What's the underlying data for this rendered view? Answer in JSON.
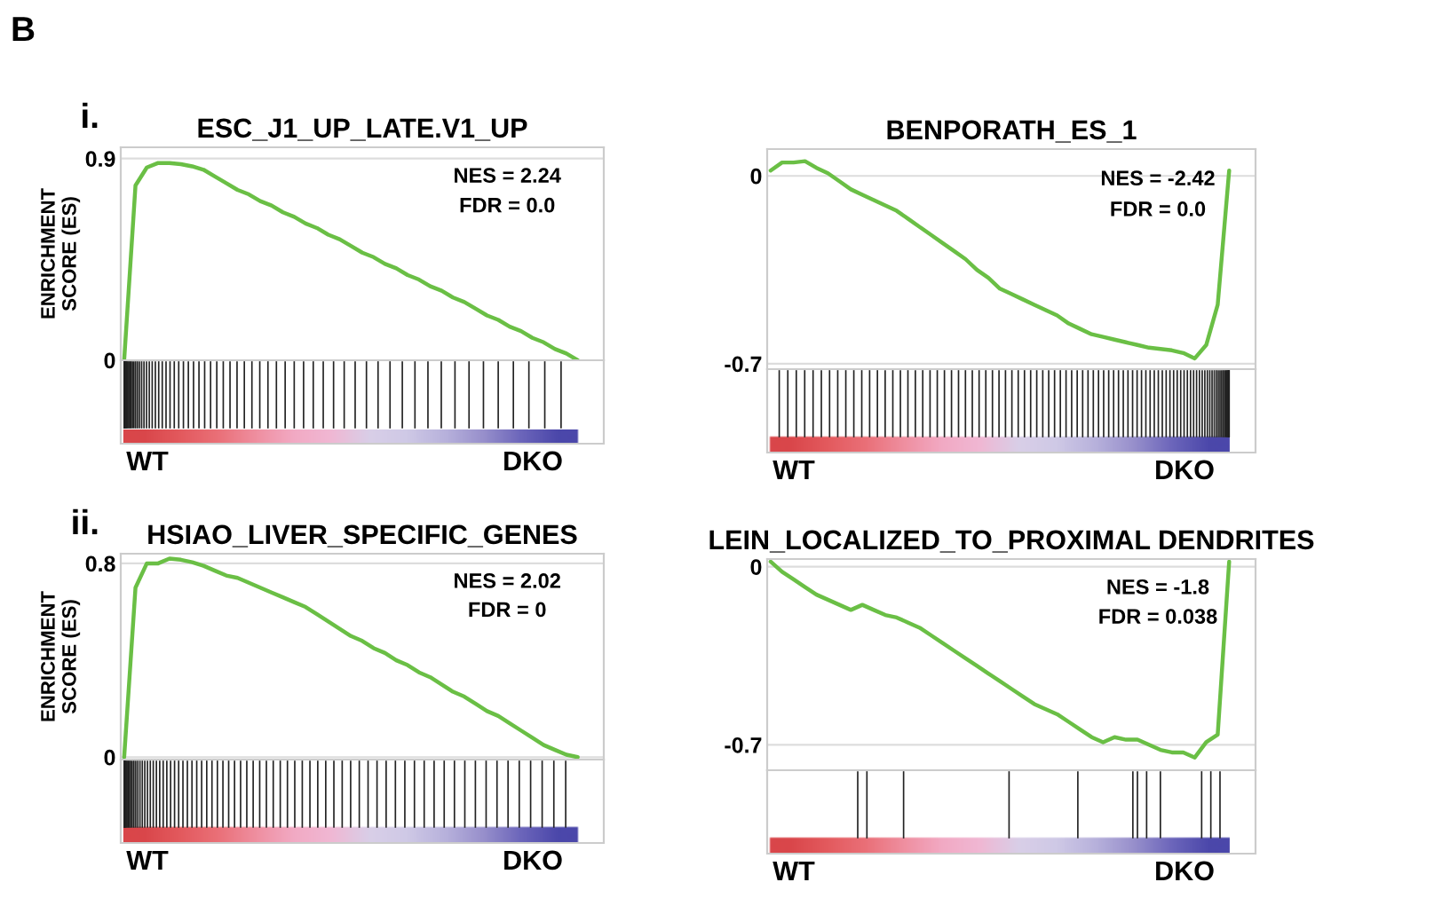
{
  "chart_data": [
    {
      "type": "line",
      "title": "ESC_J1_UP_LATE.V1_UP",
      "ylabel": "ENRICHMENT\nSCORE (ES)",
      "color": "#6abf45",
      "ylim": [
        0,
        0.95
      ],
      "yticks": [
        0,
        0.9
      ],
      "grid": "y",
      "categories": [
        null,
        null,
        null,
        null,
        null,
        null,
        null,
        null,
        null,
        null,
        null,
        null,
        null,
        null,
        null,
        null,
        null,
        null,
        null,
        null,
        null,
        null,
        null,
        null,
        null,
        null,
        null,
        null,
        null,
        null,
        null,
        null,
        null,
        null,
        null,
        null,
        null,
        null,
        null,
        null,
        null,
        null,
        null
      ],
      "values": [
        0,
        0.78,
        0.86,
        0.88,
        0.88,
        0.875,
        0.865,
        0.85,
        0.82,
        0.79,
        0.76,
        0.74,
        0.71,
        0.69,
        0.66,
        0.64,
        0.61,
        0.59,
        0.56,
        0.54,
        0.51,
        0.48,
        0.46,
        0.43,
        0.41,
        0.38,
        0.36,
        0.33,
        0.31,
        0.28,
        0.26,
        0.23,
        0.2,
        0.18,
        0.15,
        0.13,
        0.1,
        0.08,
        0.05,
        0.03,
        0,
        null,
        null
      ],
      "annotations": [
        "NES = 2.24",
        "FDR = 0.0",
        "WT",
        "DKO",
        "i.",
        "B"
      ]
    },
    {
      "type": "line",
      "title": "BENPORATH_ES_1",
      "color": "#6abf45",
      "ylim": [
        -0.72,
        0.1
      ],
      "yticks": [
        -0.7,
        0
      ],
      "grid": "y",
      "categories": [
        null,
        null,
        null,
        null,
        null,
        null,
        null,
        null,
        null,
        null,
        null,
        null,
        null,
        null,
        null,
        null,
        null,
        null,
        null,
        null,
        null,
        null,
        null,
        null,
        null,
        null,
        null,
        null,
        null,
        null,
        null,
        null,
        null,
        null,
        null,
        null,
        null,
        null,
        null,
        null,
        null,
        null,
        null
      ],
      "values": [
        0.02,
        0.05,
        0.05,
        0.055,
        0.03,
        0.01,
        -0.02,
        -0.05,
        -0.07,
        -0.09,
        -0.11,
        -0.13,
        -0.16,
        -0.19,
        -0.22,
        -0.25,
        -0.28,
        -0.31,
        -0.35,
        -0.38,
        -0.42,
        -0.44,
        -0.46,
        -0.48,
        -0.5,
        -0.52,
        -0.55,
        -0.57,
        -0.59,
        -0.6,
        -0.61,
        -0.62,
        -0.63,
        -0.64,
        -0.645,
        -0.65,
        -0.66,
        -0.68,
        -0.63,
        -0.48,
        0.02,
        null,
        null
      ],
      "annotations": [
        "NES = -2.42",
        "FDR = 0.0",
        "WT",
        "DKO"
      ]
    },
    {
      "type": "line",
      "title": "HSIAO_LIVER_SPECIFIC_GENES",
      "ylabel": "ENRICHMENT\nSCORE (ES)",
      "color": "#6abf45",
      "ylim": [
        -0.01,
        0.84
      ],
      "yticks": [
        0,
        0.8
      ],
      "grid": "y",
      "categories": [
        null,
        null,
        null,
        null,
        null,
        null,
        null,
        null,
        null,
        null,
        null,
        null,
        null,
        null,
        null,
        null,
        null,
        null,
        null,
        null,
        null,
        null,
        null,
        null,
        null,
        null,
        null,
        null,
        null,
        null,
        null,
        null,
        null,
        null,
        null,
        null,
        null,
        null,
        null,
        null,
        null,
        null,
        null
      ],
      "values": [
        0,
        0.7,
        0.8,
        0.8,
        0.82,
        0.815,
        0.805,
        0.79,
        0.77,
        0.75,
        0.74,
        0.72,
        0.7,
        0.68,
        0.66,
        0.64,
        0.62,
        0.59,
        0.56,
        0.53,
        0.5,
        0.48,
        0.45,
        0.43,
        0.4,
        0.38,
        0.35,
        0.33,
        0.3,
        0.27,
        0.25,
        0.22,
        0.19,
        0.17,
        0.14,
        0.11,
        0.08,
        0.05,
        0.03,
        0.01,
        0,
        null,
        null
      ],
      "annotations": [
        "NES = 2.02",
        "FDR = 0",
        "WT",
        "DKO",
        "ii."
      ]
    },
    {
      "type": "line",
      "title": "LEIN_LOCALIZED_TO_PROXIMAL DENDRITES",
      "color": "#6abf45",
      "ylim": [
        -0.8,
        0.03
      ],
      "yticks": [
        -0.7,
        0
      ],
      "grid": "y",
      "categories": [
        null,
        null,
        null,
        null,
        null,
        null,
        null,
        null,
        null,
        null,
        null,
        null,
        null,
        null,
        null,
        null,
        null,
        null,
        null,
        null,
        null,
        null,
        null,
        null,
        null,
        null,
        null,
        null,
        null,
        null,
        null,
        null,
        null,
        null,
        null,
        null,
        null,
        null,
        null,
        null,
        null,
        null,
        null
      ],
      "values": [
        0.02,
        -0.02,
        -0.05,
        -0.08,
        -0.11,
        -0.13,
        -0.15,
        -0.17,
        -0.15,
        -0.17,
        -0.19,
        -0.2,
        -0.22,
        -0.24,
        -0.27,
        -0.3,
        -0.33,
        -0.36,
        -0.39,
        -0.42,
        -0.45,
        -0.48,
        -0.51,
        -0.54,
        -0.56,
        -0.58,
        -0.61,
        -0.64,
        -0.67,
        -0.69,
        -0.67,
        -0.68,
        -0.68,
        -0.7,
        -0.72,
        -0.73,
        -0.73,
        -0.75,
        -0.69,
        -0.66,
        0.02,
        null,
        null
      ],
      "annotations": [
        "NES = -1.8",
        "FDR = 0.038",
        "WT",
        "DKO"
      ]
    }
  ]
}
